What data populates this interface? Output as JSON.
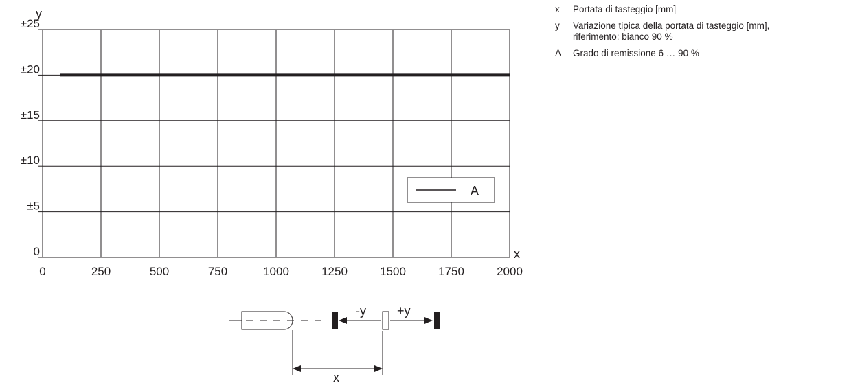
{
  "chart_data": {
    "type": "line",
    "x_axis_label": "x",
    "y_axis_label": "y",
    "x_ticks": [
      "0",
      "250",
      "500",
      "750",
      "1000",
      "1250",
      "1500",
      "1750",
      "2000"
    ],
    "y_ticks": [
      "0",
      "±5",
      "±10",
      "±15",
      "±20",
      "±25"
    ],
    "xlim": [
      0,
      2000
    ],
    "ylim": [
      0,
      25
    ],
    "grid": true,
    "legend_position": "center-right",
    "series": [
      {
        "name": "A",
        "x": [
          75,
          2000
        ],
        "y": [
          20,
          20
        ],
        "color": "#231f20"
      }
    ]
  },
  "key": [
    {
      "symbol": "x",
      "lines": [
        "Portata di tasteggio [mm]"
      ]
    },
    {
      "symbol": "y",
      "lines": [
        "Variazione tipica della portata di tasteggio [mm],",
        "riferimento: bianco 90 %"
      ]
    },
    {
      "symbol": "A",
      "lines": [
        "Grado di remissione 6 … 90 %"
      ]
    }
  ],
  "diagram": {
    "minus_y_label": "-y",
    "plus_y_label": "+y",
    "x_label": "x"
  }
}
